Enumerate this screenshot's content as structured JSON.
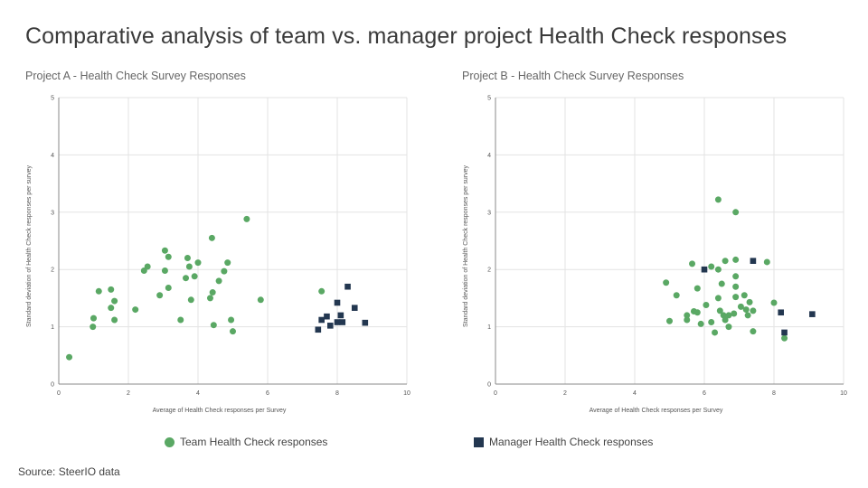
{
  "page": {
    "title": "Comparative analysis of team vs. manager project Health Check responses",
    "source": "Source: SteerIO data"
  },
  "legend": {
    "team_label": "Team Health Check responses",
    "manager_label": "Manager Health Check responses"
  },
  "colors": {
    "team": "#5aa864",
    "manager": "#233750",
    "grid": "#e3e3e3",
    "text": "#555555"
  },
  "chart_data": [
    {
      "type": "scatter",
      "title": "Project A - Health Check Survey Responses",
      "xlabel": "Average of Health Check responses per Survey",
      "ylabel": "Standard deviation of Health Check responses per survey",
      "xlim": [
        0,
        10
      ],
      "ylim": [
        0,
        5
      ],
      "xticks": [
        0,
        2,
        4,
        6,
        8,
        10
      ],
      "yticks": [
        0,
        1,
        2,
        3,
        4,
        5
      ],
      "grid": true,
      "series": [
        {
          "name": "Team Health Check responses",
          "marker": "circle",
          "points": [
            [
              0.3,
              0.47
            ],
            [
              0.98,
              1.0
            ],
            [
              1.0,
              1.15
            ],
            [
              1.15,
              1.62
            ],
            [
              1.5,
              1.65
            ],
            [
              1.5,
              1.33
            ],
            [
              1.6,
              1.45
            ],
            [
              1.6,
              1.12
            ],
            [
              2.2,
              1.3
            ],
            [
              2.45,
              1.98
            ],
            [
              2.55,
              2.05
            ],
            [
              2.9,
              1.55
            ],
            [
              3.05,
              2.33
            ],
            [
              3.05,
              1.98
            ],
            [
              3.15,
              2.22
            ],
            [
              3.15,
              1.68
            ],
            [
              3.5,
              1.12
            ],
            [
              3.65,
              1.85
            ],
            [
              3.7,
              2.2
            ],
            [
              3.75,
              2.05
            ],
            [
              3.8,
              1.47
            ],
            [
              3.9,
              1.88
            ],
            [
              4.0,
              2.12
            ],
            [
              4.35,
              1.5
            ],
            [
              4.4,
              2.55
            ],
            [
              4.42,
              1.6
            ],
            [
              4.45,
              1.03
            ],
            [
              4.6,
              1.8
            ],
            [
              4.75,
              1.97
            ],
            [
              4.85,
              2.12
            ],
            [
              4.95,
              1.12
            ],
            [
              5.0,
              0.92
            ],
            [
              5.4,
              2.88
            ],
            [
              5.8,
              1.47
            ],
            [
              7.55,
              1.62
            ]
          ]
        },
        {
          "name": "Manager Health Check responses",
          "marker": "square",
          "points": [
            [
              7.45,
              0.95
            ],
            [
              7.55,
              1.12
            ],
            [
              7.7,
              1.18
            ],
            [
              7.8,
              1.02
            ],
            [
              8.0,
              1.42
            ],
            [
              8.0,
              1.08
            ],
            [
              8.1,
              1.2
            ],
            [
              8.15,
              1.08
            ],
            [
              8.3,
              1.7
            ],
            [
              8.5,
              1.33
            ],
            [
              8.8,
              1.07
            ]
          ]
        }
      ]
    },
    {
      "type": "scatter",
      "title": "Project B - Health Check Survey Responses",
      "xlabel": "Average of Health Check responses per Survey",
      "ylabel": "Standard deviation of Health Check responses per survey",
      "xlim": [
        0,
        10
      ],
      "ylim": [
        0,
        5
      ],
      "xticks": [
        0,
        2,
        4,
        6,
        8,
        10
      ],
      "yticks": [
        0,
        1,
        2,
        3,
        4,
        5
      ],
      "grid": true,
      "series": [
        {
          "name": "Team Health Check responses",
          "marker": "circle",
          "points": [
            [
              4.9,
              1.77
            ],
            [
              5.0,
              1.1
            ],
            [
              5.2,
              1.55
            ],
            [
              5.5,
              1.2
            ],
            [
              5.5,
              1.12
            ],
            [
              5.65,
              2.1
            ],
            [
              5.7,
              1.27
            ],
            [
              5.8,
              1.25
            ],
            [
              5.8,
              1.67
            ],
            [
              5.9,
              1.05
            ],
            [
              6.05,
              1.38
            ],
            [
              6.2,
              1.08
            ],
            [
              6.2,
              2.05
            ],
            [
              6.3,
              0.9
            ],
            [
              6.4,
              2.0
            ],
            [
              6.4,
              3.22
            ],
            [
              6.4,
              1.5
            ],
            [
              6.45,
              1.28
            ],
            [
              6.5,
              1.75
            ],
            [
              6.55,
              1.2
            ],
            [
              6.6,
              2.15
            ],
            [
              6.6,
              1.12
            ],
            [
              6.7,
              1.0
            ],
            [
              6.7,
              1.2
            ],
            [
              6.85,
              1.23
            ],
            [
              6.9,
              3.0
            ],
            [
              6.9,
              2.17
            ],
            [
              6.9,
              1.88
            ],
            [
              6.9,
              1.7
            ],
            [
              6.9,
              1.52
            ],
            [
              7.05,
              1.35
            ],
            [
              7.15,
              1.55
            ],
            [
              7.2,
              1.3
            ],
            [
              7.25,
              1.2
            ],
            [
              7.3,
              1.43
            ],
            [
              7.4,
              1.28
            ],
            [
              7.4,
              0.92
            ],
            [
              7.8,
              2.13
            ],
            [
              8.0,
              1.42
            ],
            [
              8.3,
              0.8
            ]
          ]
        },
        {
          "name": "Manager Health Check responses",
          "marker": "square",
          "points": [
            [
              6.0,
              2.0
            ],
            [
              7.4,
              2.15
            ],
            [
              8.2,
              1.25
            ],
            [
              8.3,
              0.9
            ],
            [
              9.1,
              1.22
            ]
          ]
        }
      ]
    }
  ]
}
